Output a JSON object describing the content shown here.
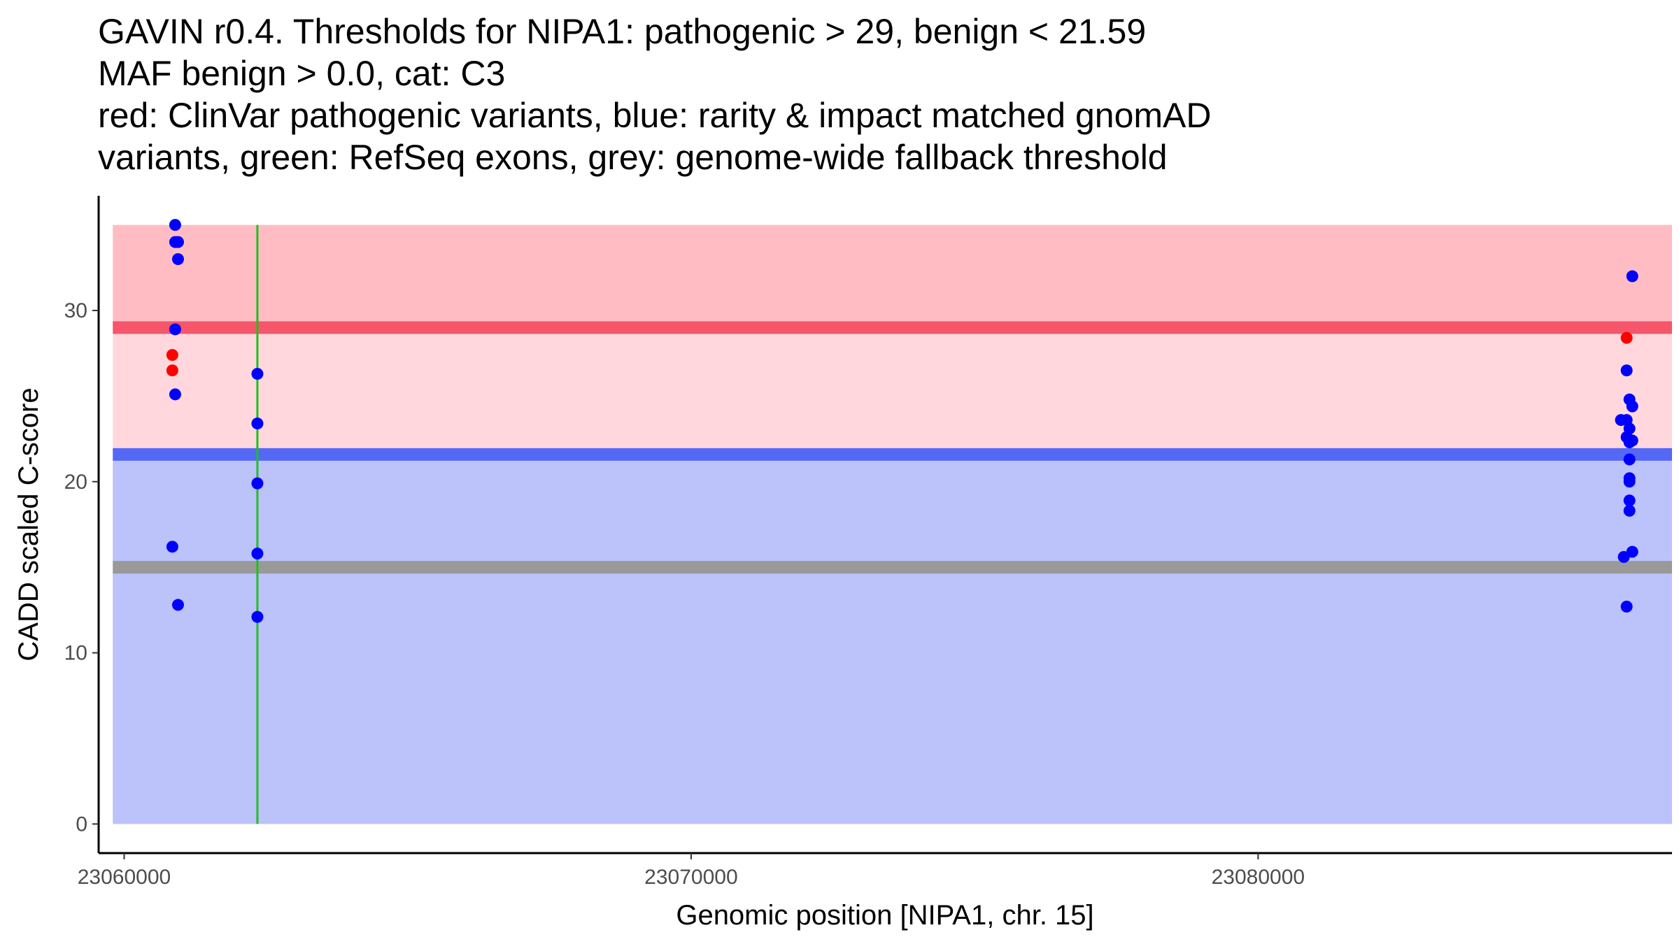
{
  "chart_data": {
    "type": "scatter",
    "title_lines": [
      "GAVIN r0.4. Thresholds for NIPA1: pathogenic > 29, benign < 21.59",
      "MAF benign > 0.0, cat: C3",
      "red: ClinVar pathogenic variants, blue: rarity & impact matched gnomAD",
      "variants, green: RefSeq exons, grey: genome-wide fallback threshold"
    ],
    "xlabel": "Genomic position [NIPA1, chr. 15]",
    "ylabel": "CADD scaled C-score",
    "xlim": [
      23059550,
      23087300
    ],
    "ylim": [
      -1.7,
      36.7
    ],
    "x_ticks": [
      {
        "value": 23060000,
        "label": "23060000"
      },
      {
        "value": 23070000,
        "label": "23070000"
      },
      {
        "value": 23080000,
        "label": "23080000"
      }
    ],
    "y_ticks": [
      {
        "value": 0,
        "label": "0"
      },
      {
        "value": 10,
        "label": "10"
      },
      {
        "value": 20,
        "label": "20"
      },
      {
        "value": 30,
        "label": "30"
      }
    ],
    "bands": [
      {
        "name": "benign-region",
        "ymin": 0,
        "ymax": 21.59,
        "color": "#bcc2fa"
      },
      {
        "name": "intermediate-region",
        "ymin": 21.59,
        "ymax": 29,
        "color": "#ffd7dc"
      },
      {
        "name": "pathogenic-region",
        "ymin": 29,
        "ymax": 35,
        "color": "#ffbdc3"
      }
    ],
    "threshold_lines": [
      {
        "name": "pathogenic-threshold",
        "value": 29,
        "color": "#f5566a"
      },
      {
        "name": "benign-threshold",
        "value": 21.59,
        "color": "#5468f5"
      },
      {
        "name": "fallback-threshold",
        "value": 15,
        "color": "#999999"
      }
    ],
    "exons": [
      {
        "name": "refseq-exon",
        "x": 23062350,
        "ymin": 0,
        "ymax": 35,
        "color": "#1fbf1f"
      }
    ],
    "series": [
      {
        "name": "ClinVar pathogenic variants",
        "color": "#ff0000",
        "points": [
          {
            "x": 23060850,
            "y": 27.4
          },
          {
            "x": 23060850,
            "y": 26.5
          },
          {
            "x": 23086500,
            "y": 28.4
          }
        ]
      },
      {
        "name": "gnomAD matched variants",
        "color": "#0000ff",
        "points": [
          {
            "x": 23060900,
            "y": 35.0
          },
          {
            "x": 23060900,
            "y": 34.0
          },
          {
            "x": 23060950,
            "y": 34.0
          },
          {
            "x": 23060950,
            "y": 33.0
          },
          {
            "x": 23060900,
            "y": 28.9
          },
          {
            "x": 23060900,
            "y": 25.1
          },
          {
            "x": 23060850,
            "y": 16.2
          },
          {
            "x": 23060950,
            "y": 12.8
          },
          {
            "x": 23062350,
            "y": 26.3
          },
          {
            "x": 23062350,
            "y": 23.4
          },
          {
            "x": 23062350,
            "y": 19.9
          },
          {
            "x": 23062350,
            "y": 15.8
          },
          {
            "x": 23062350,
            "y": 12.1
          },
          {
            "x": 23086600,
            "y": 32.0
          },
          {
            "x": 23086500,
            "y": 26.5
          },
          {
            "x": 23086550,
            "y": 24.8
          },
          {
            "x": 23086600,
            "y": 24.4
          },
          {
            "x": 23086400,
            "y": 23.6
          },
          {
            "x": 23086500,
            "y": 23.6
          },
          {
            "x": 23086550,
            "y": 23.1
          },
          {
            "x": 23086500,
            "y": 22.6
          },
          {
            "x": 23086550,
            "y": 22.3
          },
          {
            "x": 23086600,
            "y": 22.4
          },
          {
            "x": 23086550,
            "y": 21.3
          },
          {
            "x": 23086550,
            "y": 20.2
          },
          {
            "x": 23086550,
            "y": 20.0
          },
          {
            "x": 23086550,
            "y": 18.9
          },
          {
            "x": 23086550,
            "y": 18.3
          },
          {
            "x": 23086450,
            "y": 15.6
          },
          {
            "x": 23086600,
            "y": 15.9
          },
          {
            "x": 23086500,
            "y": 12.7
          }
        ]
      }
    ]
  }
}
